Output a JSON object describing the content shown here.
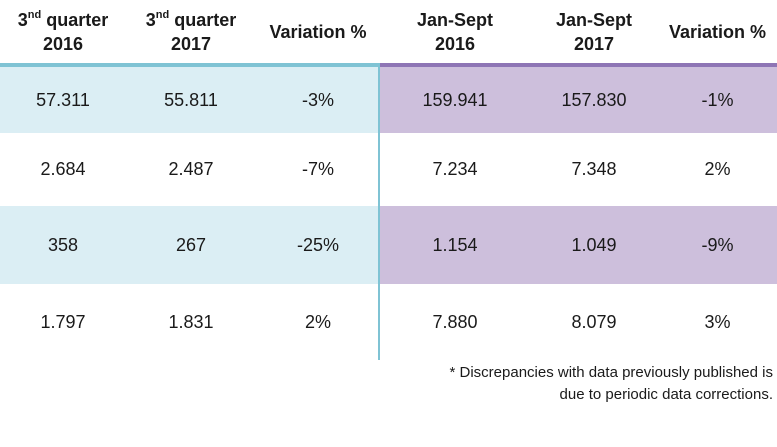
{
  "header": {
    "col1": {
      "num": "3",
      "sup": "nd",
      "line1_rest": " quarter",
      "line2": "2016"
    },
    "col2": {
      "num": "3",
      "sup": "nd",
      "line1_rest": " quarter",
      "line2": "2017"
    },
    "col3": {
      "label": "Variation %"
    },
    "col4": {
      "line1": "Jan-Sept",
      "line2": "2016"
    },
    "col5": {
      "line1": "Jan-Sept",
      "line2": "2017"
    },
    "col6": {
      "label": "Variation %"
    }
  },
  "rows": [
    [
      "57.311",
      "55.811",
      "-3%",
      "159.941",
      "157.830",
      "-1%"
    ],
    [
      "2.684",
      "2.487",
      "-7%",
      "7.234",
      "7.348",
      "2%"
    ],
    [
      "358",
      "267",
      "-25%",
      "1.154",
      "1.049",
      "-9%"
    ],
    [
      "1.797",
      "1.831",
      "2%",
      "7.880",
      "8.079",
      "3%"
    ]
  ],
  "colors": {
    "left_shade": "#dbeef4",
    "right_shade": "#cdbfdc",
    "left_rule": "#7fc3d4",
    "right_rule": "#8e75b5"
  },
  "footnote": {
    "line1": "* Discrepancies with data previously published is",
    "line2": "due to periodic data corrections."
  }
}
